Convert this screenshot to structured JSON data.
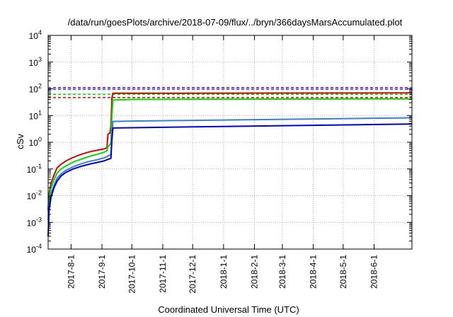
{
  "chart_data": {
    "type": "line",
    "title": "/data/run/goesPlots/archive/2018-07-09/flux/../bryn/366daysMarsAccumulated.plot",
    "xlabel": "Coordinated Universal Time (UTC)",
    "ylabel": "cSv",
    "y_scale": "log",
    "ylim": [
      0.0001,
      10000
    ],
    "xlim": [
      "2017-07-09",
      "2018-07-09"
    ],
    "grid": true,
    "y_ticks": [
      {
        "base": "10",
        "exp": "-4",
        "value": 0.0001
      },
      {
        "base": "10",
        "exp": "-3",
        "value": 0.001
      },
      {
        "base": "10",
        "exp": "-2",
        "value": 0.01
      },
      {
        "base": "10",
        "exp": "-1",
        "value": 0.1
      },
      {
        "base": "10",
        "exp": "0",
        "value": 1
      },
      {
        "base": "10",
        "exp": "1",
        "value": 10
      },
      {
        "base": "10",
        "exp": "2",
        "value": 100
      },
      {
        "base": "10",
        "exp": "3",
        "value": 1000
      },
      {
        "base": "10",
        "exp": "4",
        "value": 10000
      }
    ],
    "x_ticks": [
      {
        "label": "2017-8-1",
        "date": "2017-08-01"
      },
      {
        "label": "2017-9-1",
        "date": "2017-09-01"
      },
      {
        "label": "2017-10-1",
        "date": "2017-10-01"
      },
      {
        "label": "2017-11-1",
        "date": "2017-11-01"
      },
      {
        "label": "2017-12-1",
        "date": "2017-12-01"
      },
      {
        "label": "2018-1-1",
        "date": "2018-01-01"
      },
      {
        "label": "2018-2-1",
        "date": "2018-02-01"
      },
      {
        "label": "2018-3-1",
        "date": "2018-03-01"
      },
      {
        "label": "2018-4-1",
        "date": "2018-04-01"
      },
      {
        "label": "2018-5-1",
        "date": "2018-05-01"
      },
      {
        "label": "2018-6-1",
        "date": "2018-06-01"
      }
    ],
    "reference_lines": [
      {
        "color": "#9400d3",
        "y": 110
      },
      {
        "color": "#3a5fcd",
        "y": 95
      },
      {
        "color": "#00dd00",
        "y": 62
      },
      {
        "color": "#dd0000",
        "y": 47
      }
    ],
    "series": [
      {
        "color": "#dd0000",
        "points": [
          [
            "2017-07-09",
            0.003
          ],
          [
            "2017-07-10",
            0.012
          ],
          [
            "2017-07-12",
            0.03
          ],
          [
            "2017-07-15",
            0.06
          ],
          [
            "2017-07-18",
            0.11
          ],
          [
            "2017-07-22",
            0.15
          ],
          [
            "2017-07-27",
            0.2
          ],
          [
            "2017-08-03",
            0.27
          ],
          [
            "2017-08-11",
            0.35
          ],
          [
            "2017-08-19",
            0.43
          ],
          [
            "2017-08-27",
            0.5
          ],
          [
            "2017-09-03",
            0.56
          ],
          [
            "2017-09-06",
            0.62
          ],
          [
            "2017-09-07",
            2.0
          ],
          [
            "2017-09-09",
            2.2
          ],
          [
            "2017-09-10",
            4.0
          ],
          [
            "2017-09-11",
            45
          ],
          [
            "2017-09-12",
            68
          ],
          [
            "2017-10-01",
            68
          ],
          [
            "2018-01-01",
            69
          ],
          [
            "2018-07-09",
            70
          ]
        ]
      },
      {
        "color": "#00dd00",
        "points": [
          [
            "2017-07-09",
            0.0025
          ],
          [
            "2017-07-10",
            0.009
          ],
          [
            "2017-07-12",
            0.02
          ],
          [
            "2017-07-15",
            0.04
          ],
          [
            "2017-07-18",
            0.07
          ],
          [
            "2017-07-22",
            0.1
          ],
          [
            "2017-07-27",
            0.13
          ],
          [
            "2017-08-03",
            0.18
          ],
          [
            "2017-08-11",
            0.23
          ],
          [
            "2017-08-19",
            0.29
          ],
          [
            "2017-08-27",
            0.35
          ],
          [
            "2017-09-03",
            0.42
          ],
          [
            "2017-09-06",
            0.48
          ],
          [
            "2017-09-07",
            0.7
          ],
          [
            "2017-09-09",
            0.8
          ],
          [
            "2017-09-10",
            1.0
          ],
          [
            "2017-09-11",
            10
          ],
          [
            "2017-09-12",
            38
          ],
          [
            "2017-10-01",
            40
          ],
          [
            "2018-01-01",
            41
          ],
          [
            "2018-07-09",
            42
          ]
        ]
      },
      {
        "color": "#3a7fd5",
        "points": [
          [
            "2017-07-09",
            0.0012
          ],
          [
            "2017-07-10",
            0.005
          ],
          [
            "2017-07-12",
            0.012
          ],
          [
            "2017-07-15",
            0.025
          ],
          [
            "2017-07-18",
            0.045
          ],
          [
            "2017-07-22",
            0.065
          ],
          [
            "2017-07-27",
            0.09
          ],
          [
            "2017-08-03",
            0.12
          ],
          [
            "2017-08-11",
            0.155
          ],
          [
            "2017-08-19",
            0.19
          ],
          [
            "2017-08-27",
            0.22
          ],
          [
            "2017-09-03",
            0.26
          ],
          [
            "2017-09-06",
            0.29
          ],
          [
            "2017-09-07",
            0.31
          ],
          [
            "2017-09-09",
            0.33
          ],
          [
            "2017-09-10",
            0.35
          ],
          [
            "2017-09-11",
            1.8
          ],
          [
            "2017-09-12",
            6.0
          ],
          [
            "2017-10-01",
            6.2
          ],
          [
            "2018-01-01",
            6.8
          ],
          [
            "2018-07-09",
            8.2
          ]
        ]
      },
      {
        "color": "#0000dd",
        "points": [
          [
            "2017-07-09",
            0.0003
          ],
          [
            "2017-07-10",
            0.003
          ],
          [
            "2017-07-12",
            0.009
          ],
          [
            "2017-07-15",
            0.02
          ],
          [
            "2017-07-18",
            0.035
          ],
          [
            "2017-07-22",
            0.055
          ],
          [
            "2017-07-27",
            0.075
          ],
          [
            "2017-08-03",
            0.1
          ],
          [
            "2017-08-11",
            0.125
          ],
          [
            "2017-08-19",
            0.15
          ],
          [
            "2017-08-27",
            0.175
          ],
          [
            "2017-09-03",
            0.2
          ],
          [
            "2017-09-06",
            0.22
          ],
          [
            "2017-09-07",
            0.23
          ],
          [
            "2017-09-09",
            0.24
          ],
          [
            "2017-09-10",
            0.25
          ],
          [
            "2017-09-11",
            1.2
          ],
          [
            "2017-09-12",
            3.4
          ],
          [
            "2017-10-01",
            3.5
          ],
          [
            "2018-01-01",
            3.9
          ],
          [
            "2018-07-09",
            4.8
          ]
        ]
      }
    ]
  }
}
